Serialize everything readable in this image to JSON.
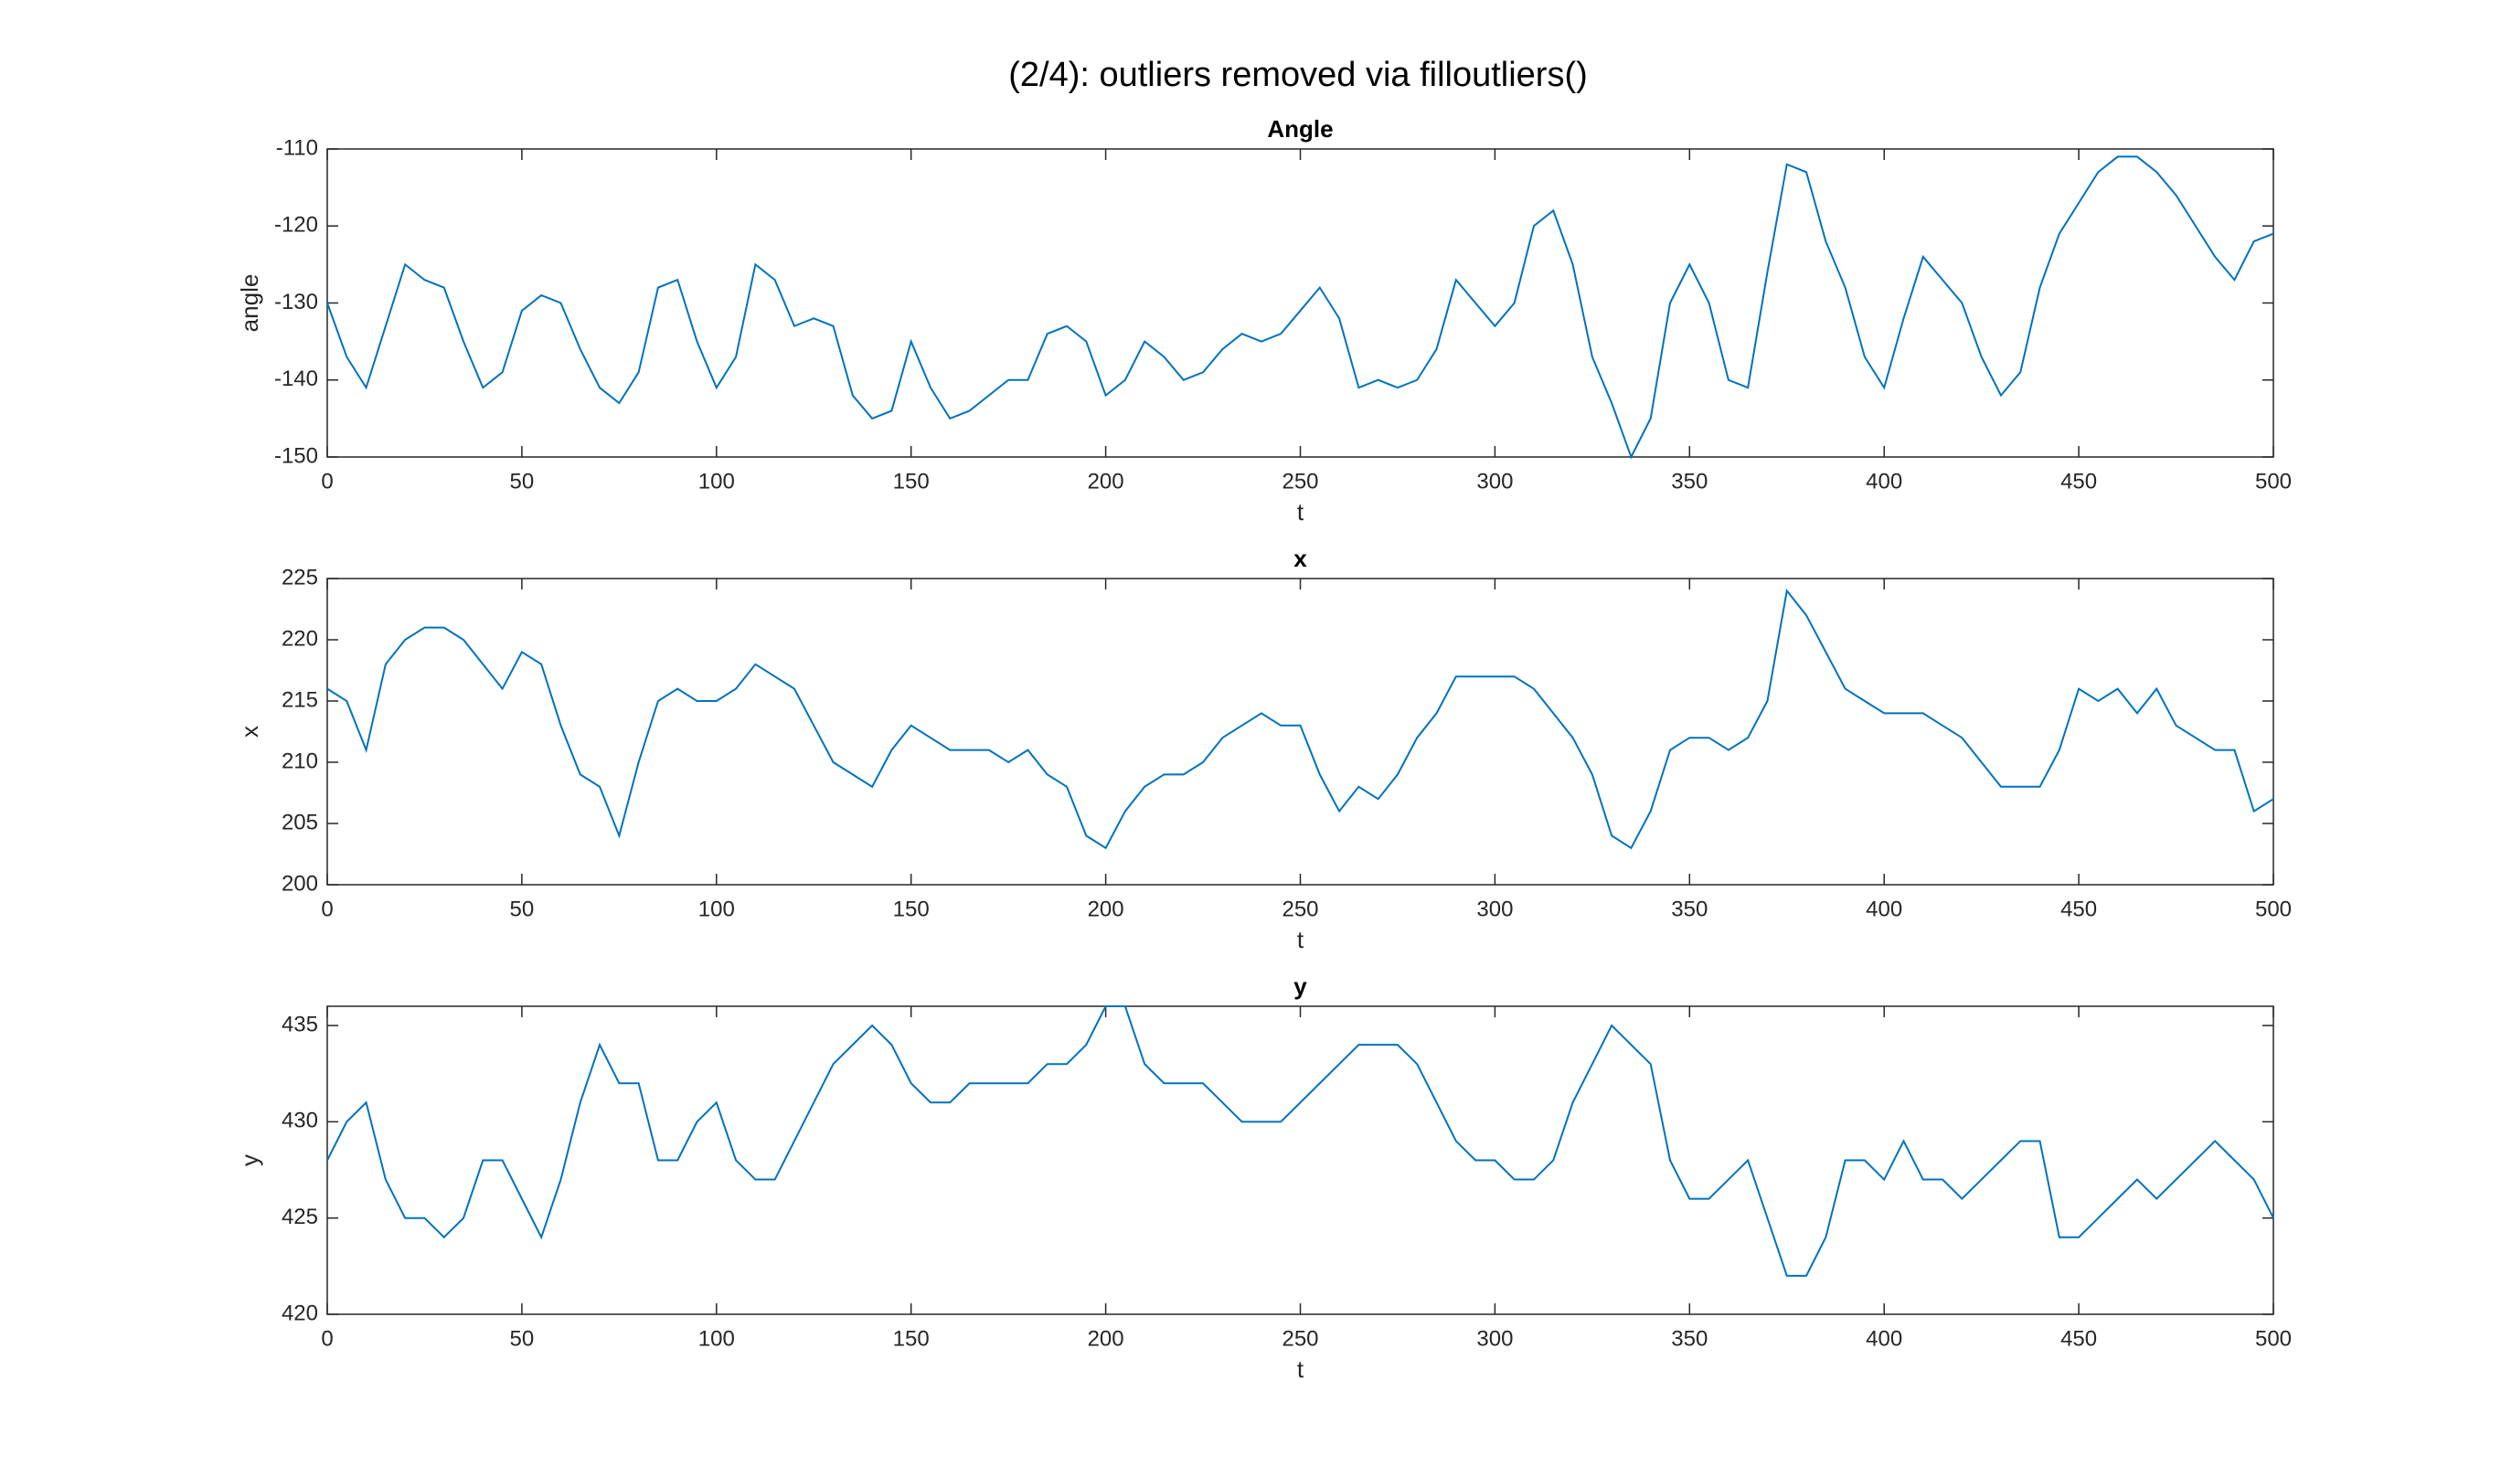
{
  "figure_title": "(2/4): outliers removed via filloutliers()",
  "chart_data": [
    {
      "type": "line",
      "title": "Angle",
      "xlabel": "t",
      "ylabel": "angle",
      "color": "#0072bd",
      "x": [
        0,
        5,
        10,
        15,
        20,
        25,
        30,
        35,
        40,
        45,
        50,
        55,
        60,
        65,
        70,
        75,
        80,
        85,
        90,
        95,
        100,
        105,
        110,
        115,
        120,
        125,
        130,
        135,
        140,
        145,
        150,
        155,
        160,
        165,
        170,
        175,
        180,
        185,
        190,
        195,
        200,
        205,
        210,
        215,
        220,
        225,
        230,
        235,
        240,
        245,
        250,
        255,
        260,
        265,
        270,
        275,
        280,
        285,
        290,
        295,
        300,
        305,
        310,
        315,
        320,
        325,
        330,
        335,
        340,
        345,
        350,
        355,
        360,
        365,
        370,
        375,
        380,
        385,
        390,
        395,
        400,
        405,
        410,
        415,
        420,
        425,
        430,
        435,
        440,
        445,
        450,
        455,
        460,
        465,
        470,
        475,
        480,
        485,
        490,
        495,
        500
      ],
      "values": [
        -130,
        -137,
        -141,
        -133,
        -125,
        -127,
        -128,
        -135,
        -141,
        -139,
        -131,
        -129,
        -130,
        -136,
        -141,
        -143,
        -139,
        -128,
        -127,
        -135,
        -141,
        -137,
        -125,
        -127,
        -133,
        -132,
        -133,
        -142,
        -145,
        -144,
        -135,
        -141,
        -145,
        -144,
        -142,
        -140,
        -140,
        -134,
        -133,
        -135,
        -142,
        -140,
        -135,
        -137,
        -140,
        -139,
        -136,
        -134,
        -135,
        -134,
        -131,
        -128,
        -132,
        -141,
        -140,
        -141,
        -140,
        -136,
        -127,
        -130,
        -133,
        -130,
        -120,
        -118,
        -125,
        -137,
        -143,
        -150,
        -145,
        -130,
        -125,
        -130,
        -140,
        -141,
        -126,
        -112,
        -113,
        -122,
        -128,
        -137,
        -141,
        -132,
        -124,
        -127,
        -130,
        -137,
        -142,
        -139,
        -128,
        -121,
        -117,
        -113,
        -111,
        -111,
        -113,
        -116,
        -120,
        -124,
        -127,
        -122,
        -121
      ],
      "xlim": [
        0,
        500
      ],
      "xticks": [
        0,
        50,
        100,
        150,
        200,
        250,
        300,
        350,
        400,
        450,
        500
      ],
      "ylim": [
        -150,
        -110
      ],
      "yticks": [
        -150,
        -140,
        -130,
        -120,
        -110
      ]
    },
    {
      "type": "line",
      "title": "x",
      "xlabel": "t",
      "ylabel": "x",
      "color": "#0072bd",
      "x": [
        0,
        5,
        10,
        15,
        20,
        25,
        30,
        35,
        40,
        45,
        50,
        55,
        60,
        65,
        70,
        75,
        80,
        85,
        90,
        95,
        100,
        105,
        110,
        115,
        120,
        125,
        130,
        135,
        140,
        145,
        150,
        155,
        160,
        165,
        170,
        175,
        180,
        185,
        190,
        195,
        200,
        205,
        210,
        215,
        220,
        225,
        230,
        235,
        240,
        245,
        250,
        255,
        260,
        265,
        270,
        275,
        280,
        285,
        290,
        295,
        300,
        305,
        310,
        315,
        320,
        325,
        330,
        335,
        340,
        345,
        350,
        355,
        360,
        365,
        370,
        375,
        380,
        385,
        390,
        395,
        400,
        405,
        410,
        415,
        420,
        425,
        430,
        435,
        440,
        445,
        450,
        455,
        460,
        465,
        470,
        475,
        480,
        485,
        490,
        495,
        500
      ],
      "values": [
        216,
        215,
        211,
        218,
        220,
        221,
        221,
        220,
        218,
        216,
        219,
        218,
        213,
        209,
        208,
        204,
        210,
        215,
        216,
        215,
        215,
        216,
        218,
        217,
        216,
        213,
        210,
        209,
        208,
        211,
        213,
        212,
        211,
        211,
        211,
        210,
        211,
        209,
        208,
        204,
        203,
        206,
        208,
        209,
        209,
        210,
        212,
        213,
        214,
        213,
        213,
        209,
        206,
        208,
        207,
        209,
        212,
        214,
        217,
        217,
        217,
        217,
        216,
        214,
        212,
        209,
        204,
        203,
        206,
        211,
        212,
        212,
        211,
        212,
        215,
        224,
        222,
        219,
        216,
        215,
        214,
        214,
        214,
        213,
        212,
        210,
        208,
        208,
        208,
        211,
        216,
        215,
        216,
        214,
        216,
        213,
        212,
        211,
        211,
        206,
        207
      ],
      "xlim": [
        0,
        500
      ],
      "xticks": [
        0,
        50,
        100,
        150,
        200,
        250,
        300,
        350,
        400,
        450,
        500
      ],
      "ylim": [
        200,
        225
      ],
      "yticks": [
        200,
        205,
        210,
        215,
        220,
        225
      ]
    },
    {
      "type": "line",
      "title": "y",
      "xlabel": "t",
      "ylabel": "y",
      "color": "#0072bd",
      "x": [
        0,
        5,
        10,
        15,
        20,
        25,
        30,
        35,
        40,
        45,
        50,
        55,
        60,
        65,
        70,
        75,
        80,
        85,
        90,
        95,
        100,
        105,
        110,
        115,
        120,
        125,
        130,
        135,
        140,
        145,
        150,
        155,
        160,
        165,
        170,
        175,
        180,
        185,
        190,
        195,
        200,
        205,
        210,
        215,
        220,
        225,
        230,
        235,
        240,
        245,
        250,
        255,
        260,
        265,
        270,
        275,
        280,
        285,
        290,
        295,
        300,
        305,
        310,
        315,
        320,
        325,
        330,
        335,
        340,
        345,
        350,
        355,
        360,
        365,
        370,
        375,
        380,
        385,
        390,
        395,
        400,
        405,
        410,
        415,
        420,
        425,
        430,
        435,
        440,
        445,
        450,
        455,
        460,
        465,
        470,
        475,
        480,
        485,
        490,
        495,
        500
      ],
      "values": [
        428,
        430,
        431,
        427,
        425,
        425,
        424,
        425,
        428,
        428,
        426,
        424,
        427,
        431,
        434,
        432,
        432,
        428,
        428,
        430,
        431,
        428,
        427,
        427,
        429,
        431,
        433,
        434,
        435,
        434,
        432,
        431,
        431,
        432,
        432,
        432,
        432,
        433,
        433,
        434,
        436,
        436,
        433,
        432,
        432,
        432,
        431,
        430,
        430,
        430,
        431,
        432,
        433,
        434,
        434,
        434,
        433,
        431,
        429,
        428,
        428,
        427,
        427,
        428,
        431,
        433,
        435,
        434,
        433,
        428,
        426,
        426,
        427,
        428,
        425,
        422,
        422,
        424,
        428,
        428,
        427,
        429,
        427,
        427,
        426,
        427,
        428,
        429,
        429,
        424,
        424,
        425,
        426,
        427,
        426,
        427,
        428,
        429,
        428,
        427,
        425
      ],
      "xlim": [
        0,
        500
      ],
      "xticks": [
        0,
        50,
        100,
        150,
        200,
        250,
        300,
        350,
        400,
        450,
        500
      ],
      "ylim": [
        420,
        436
      ],
      "yticks": [
        420,
        425,
        430,
        435
      ]
    }
  ]
}
